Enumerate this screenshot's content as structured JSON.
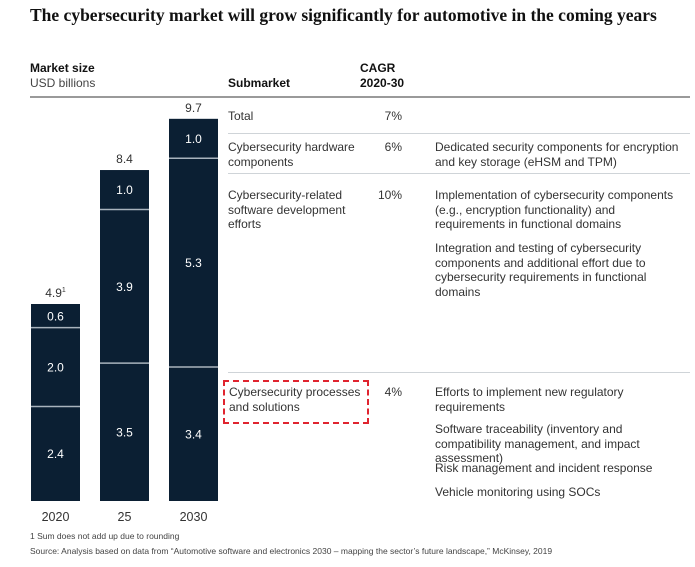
{
  "title": "The cybersecurity market will grow significantly for automotive in the coming years",
  "headers": {
    "market_size": "Market size",
    "unit": "USD billions",
    "submarket": "Submarket",
    "cagr_line1": "CAGR",
    "cagr_line2": "2020-30"
  },
  "chart_data": {
    "type": "bar",
    "stacked": true,
    "title": "The cybersecurity market will grow significantly for automotive in the coming years",
    "ylabel": "Market size, USD billions",
    "categories": [
      "2020",
      "25",
      "2030"
    ],
    "series": [
      {
        "name": "Cybersecurity processes and solutions",
        "values": [
          2.4,
          3.5,
          3.4
        ]
      },
      {
        "name": "Cybersecurity-related software development efforts",
        "values": [
          2.0,
          3.9,
          5.3
        ]
      },
      {
        "name": "Cybersecurity hardware components",
        "values": [
          0.6,
          1.0,
          1.0
        ]
      }
    ],
    "totals": [
      "4.9",
      "8.4",
      "9.7"
    ],
    "total_footnote_marks": [
      "1",
      "",
      ""
    ],
    "segment_labels": [
      [
        "2.4",
        "2.0",
        "0.6"
      ],
      [
        "3.5",
        "3.9",
        "1.0"
      ],
      [
        "3.4",
        "5.3",
        "1.0"
      ]
    ],
    "bar_color": "#0b1f33"
  },
  "rows": [
    {
      "submarket": "Total",
      "cagr": "7%",
      "descriptions": []
    },
    {
      "submarket": "Cybersecurity hardware components",
      "cagr": "6%",
      "descriptions": [
        "Dedicated security components for encryption and key storage (eHSM and TPM)"
      ]
    },
    {
      "submarket": "Cybersecurity-related software development efforts",
      "cagr": "10%",
      "descriptions": [
        "Implementation of cybersecurity components (e.g., encryption functionality) and requirements in functional domains",
        "Integration and testing of cybersecurity components and additional effort due to cybersecurity requirements in functional domains"
      ]
    },
    {
      "submarket": "Cybersecurity processes and solutions",
      "cagr": "4%",
      "highlighted": true,
      "descriptions": [
        "Efforts to implement new regulatory requirements",
        "Software traceability (inventory and compatibility management, and impact assessment)",
        "Risk management and incident response",
        "Vehicle monitoring using SOCs"
      ]
    }
  ],
  "highlight_color": "#e0242f",
  "footnote": "1  Sum does not add up due to rounding",
  "source": "Source: Analysis based on data from “Automotive software and electronics 2030 – mapping the sector’s future landscape,” McKinsey, 2019"
}
